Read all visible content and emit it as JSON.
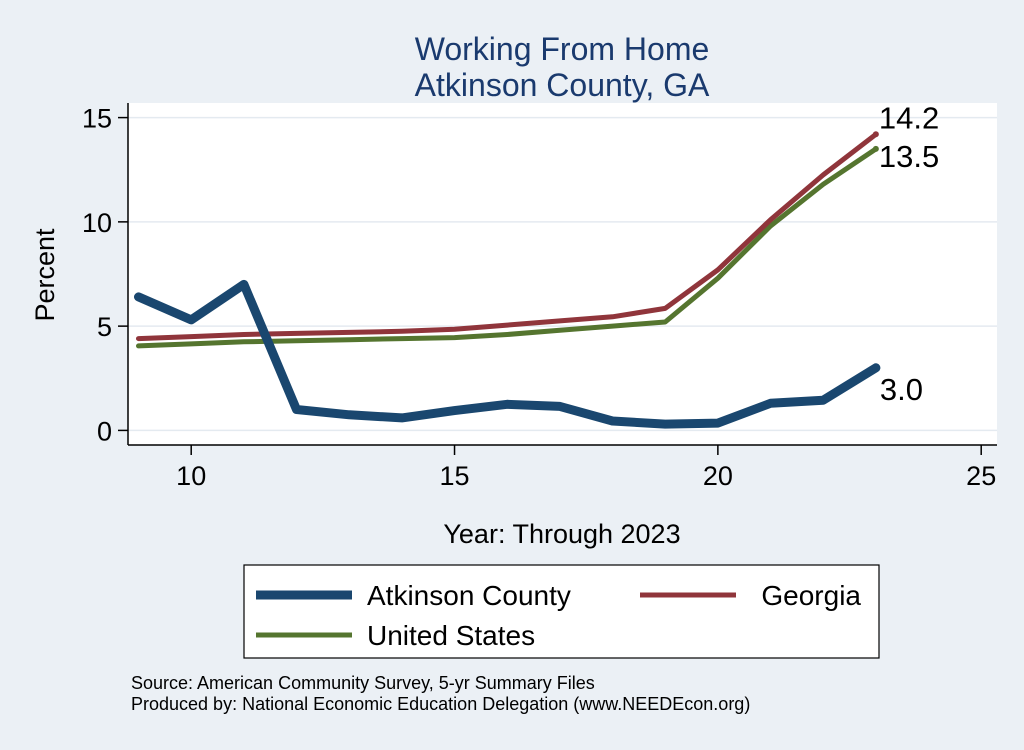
{
  "chart_data": {
    "type": "line",
    "title": "Working From Home",
    "subtitle": "Atkinson County, GA",
    "xlabel": "Year: Through 2023",
    "ylabel": "Percent",
    "xlim": [
      8.8,
      25.3
    ],
    "ylim": [
      -0.7,
      15.7
    ],
    "xticks": [
      10,
      15,
      20,
      25
    ],
    "yticks": [
      0,
      5,
      10,
      15
    ],
    "grid": true,
    "legend_position": "bottom",
    "series": [
      {
        "name": "Atkinson County",
        "color": "#1a476f",
        "x": [
          9,
          10,
          11,
          12,
          13,
          14,
          15,
          16,
          17,
          18,
          19,
          20,
          21,
          22,
          23
        ],
        "values": [
          6.4,
          5.3,
          7.0,
          1.0,
          0.75,
          0.6,
          0.95,
          1.25,
          1.15,
          0.45,
          0.3,
          0.35,
          1.3,
          1.45,
          3.0
        ],
        "end_label": "3.0"
      },
      {
        "name": "Georgia",
        "color": "#90353b",
        "x": [
          9,
          10,
          11,
          12,
          13,
          14,
          15,
          16,
          17,
          18,
          19,
          20,
          21,
          22,
          23
        ],
        "values": [
          4.4,
          4.5,
          4.6,
          4.65,
          4.7,
          4.75,
          4.85,
          5.05,
          5.25,
          5.45,
          5.85,
          7.7,
          10.1,
          12.25,
          14.2
        ],
        "end_label": "14.2"
      },
      {
        "name": "United States",
        "color": "#55752f",
        "x": [
          9,
          10,
          11,
          12,
          13,
          14,
          15,
          16,
          17,
          18,
          19,
          20,
          21,
          22,
          23
        ],
        "values": [
          4.05,
          4.15,
          4.25,
          4.3,
          4.35,
          4.4,
          4.45,
          4.6,
          4.8,
          5.0,
          5.2,
          7.3,
          9.8,
          11.8,
          13.5
        ],
        "end_label": "13.5"
      }
    ]
  },
  "source": {
    "line1": "Source: American Community Survey, 5-yr Summary Files",
    "line2": "Produced by: National Economic Education Delegation (www.NEEDEcon.org)"
  }
}
